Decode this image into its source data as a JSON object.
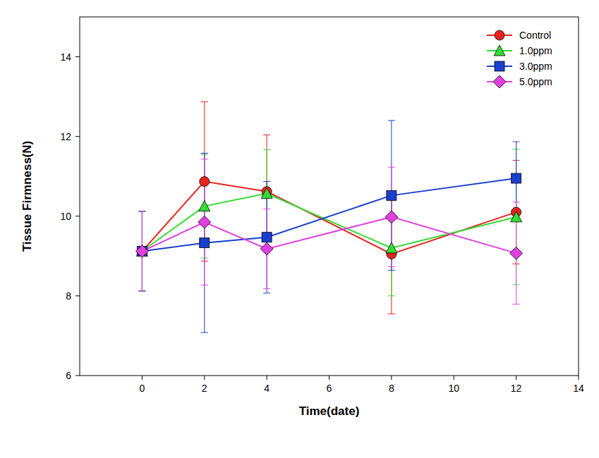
{
  "chart_data": {
    "type": "line",
    "x_label": "Time(date)",
    "y_label": "Tissue Firmness(N)",
    "x": [
      0,
      2,
      4,
      8,
      12
    ],
    "xlim": [
      -2,
      14
    ],
    "xticks": [
      0,
      2,
      4,
      6,
      8,
      10,
      12,
      14
    ],
    "ylim": [
      6,
      15
    ],
    "yticks": [
      6,
      8,
      10,
      12,
      14
    ],
    "grid": false,
    "legend": "top-right",
    "series": [
      {
        "name": "Control",
        "color": "#e8231e",
        "marker": "circle",
        "values": [
          9.12,
          10.87,
          10.62,
          9.05,
          10.1
        ],
        "errors": [
          1.0,
          2.0,
          1.42,
          1.5,
          1.3
        ]
      },
      {
        "name": "1.0ppm",
        "color": "#33dd33",
        "marker": "triangle",
        "values": [
          9.12,
          10.25,
          10.57,
          9.2,
          9.98
        ],
        "errors": [
          1.0,
          1.3,
          1.1,
          1.2,
          1.7
        ]
      },
      {
        "name": "3.0ppm",
        "color": "#1a3fcf",
        "marker": "square",
        "values": [
          9.12,
          9.33,
          9.47,
          10.52,
          10.95
        ],
        "errors": [
          1.0,
          2.25,
          1.4,
          1.88,
          0.92
        ]
      },
      {
        "name": "5.0ppm",
        "color": "#e040e0",
        "marker": "diamond",
        "values": [
          9.12,
          9.85,
          9.18,
          9.98,
          9.07
        ],
        "errors": [
          1.0,
          1.58,
          1.0,
          1.25,
          1.28
        ]
      }
    ]
  }
}
